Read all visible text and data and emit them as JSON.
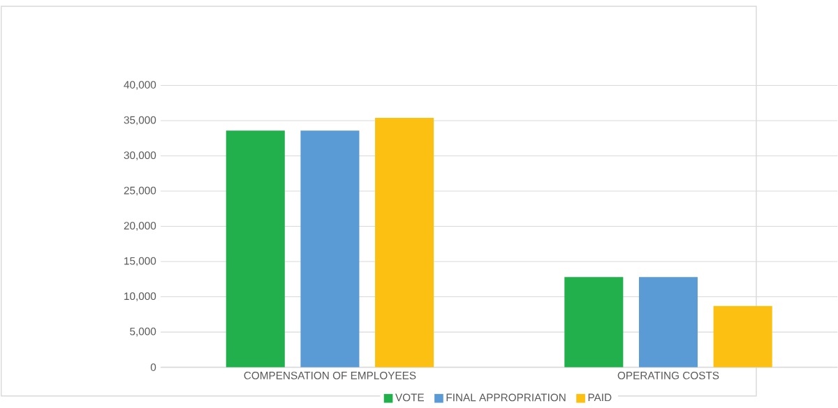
{
  "chart_data": {
    "type": "bar",
    "categories": [
      "COMPENSATION OF EMPLOYEES",
      "OPERATING COSTS"
    ],
    "series": [
      {
        "name": "VOTE",
        "color": "#21b04b",
        "values": [
          33600,
          12800
        ]
      },
      {
        "name": "FINAL APPROPRIATION",
        "color": "#5b9bd5",
        "values": [
          33600,
          12800
        ]
      },
      {
        "name": "PAID",
        "color": "#fbc012",
        "values": [
          35400,
          8700
        ]
      }
    ],
    "ylim": [
      0,
      40000
    ],
    "yticks": [
      {
        "value": 0,
        "label": "0"
      },
      {
        "value": 5000,
        "label": "5,000"
      },
      {
        "value": 10000,
        "label": "10,000"
      },
      {
        "value": 15000,
        "label": "15,000"
      },
      {
        "value": 20000,
        "label": "20,000"
      },
      {
        "value": 25000,
        "label": "25,000"
      },
      {
        "value": 30000,
        "label": "30,000"
      },
      {
        "value": 35000,
        "label": "35,000"
      },
      {
        "value": 40000,
        "label": "40,000"
      }
    ],
    "grid": "y",
    "legend": "bottom"
  }
}
